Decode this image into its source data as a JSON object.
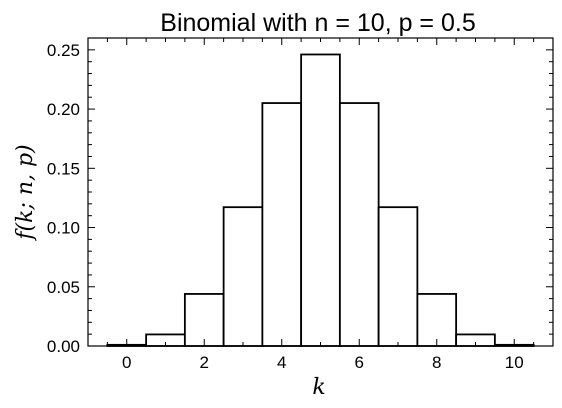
{
  "chart_data": {
    "type": "bar",
    "title": "Binomial with n = 10, p = 0.5",
    "xlabel": "k",
    "ylabel": "f(k; n, p)",
    "categories": [
      0,
      1,
      2,
      3,
      4,
      5,
      6,
      7,
      8,
      9,
      10
    ],
    "values": [
      0.000977,
      0.009766,
      0.043945,
      0.117188,
      0.205078,
      0.246094,
      0.205078,
      0.117188,
      0.043945,
      0.009766,
      0.000977
    ],
    "xlim": [
      -1,
      11
    ],
    "ylim": [
      0,
      0.26
    ],
    "xticks": [
      0,
      2,
      4,
      6,
      8,
      10
    ],
    "xtick_labels": [
      "0",
      "2",
      "4",
      "6",
      "8",
      "10"
    ],
    "yticks": [
      0,
      0.05,
      0.1,
      0.15,
      0.2,
      0.25
    ],
    "ytick_labels": [
      "0.00",
      "0.05",
      "0.10",
      "0.15",
      "0.20",
      "0.25"
    ],
    "bar_fill": "#ffffff",
    "bar_edge": "#000000",
    "grid": false,
    "legend": "none"
  }
}
